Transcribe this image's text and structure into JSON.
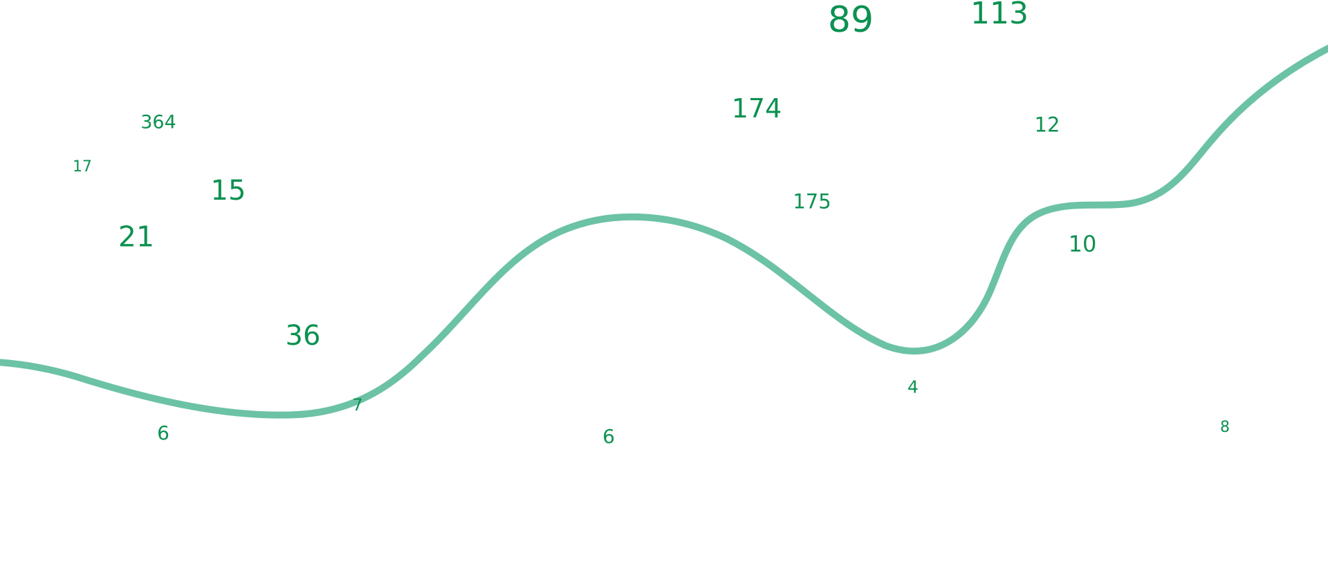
{
  "colors": {
    "number": "#0c9150",
    "curve": "#6cc2a5",
    "background": "#ffffff"
  },
  "numbers": [
    "89",
    "113",
    "174",
    "364",
    "12",
    "17",
    "15",
    "175",
    "21",
    "10",
    "36",
    "4",
    "7",
    "6",
    "6",
    "8"
  ]
}
